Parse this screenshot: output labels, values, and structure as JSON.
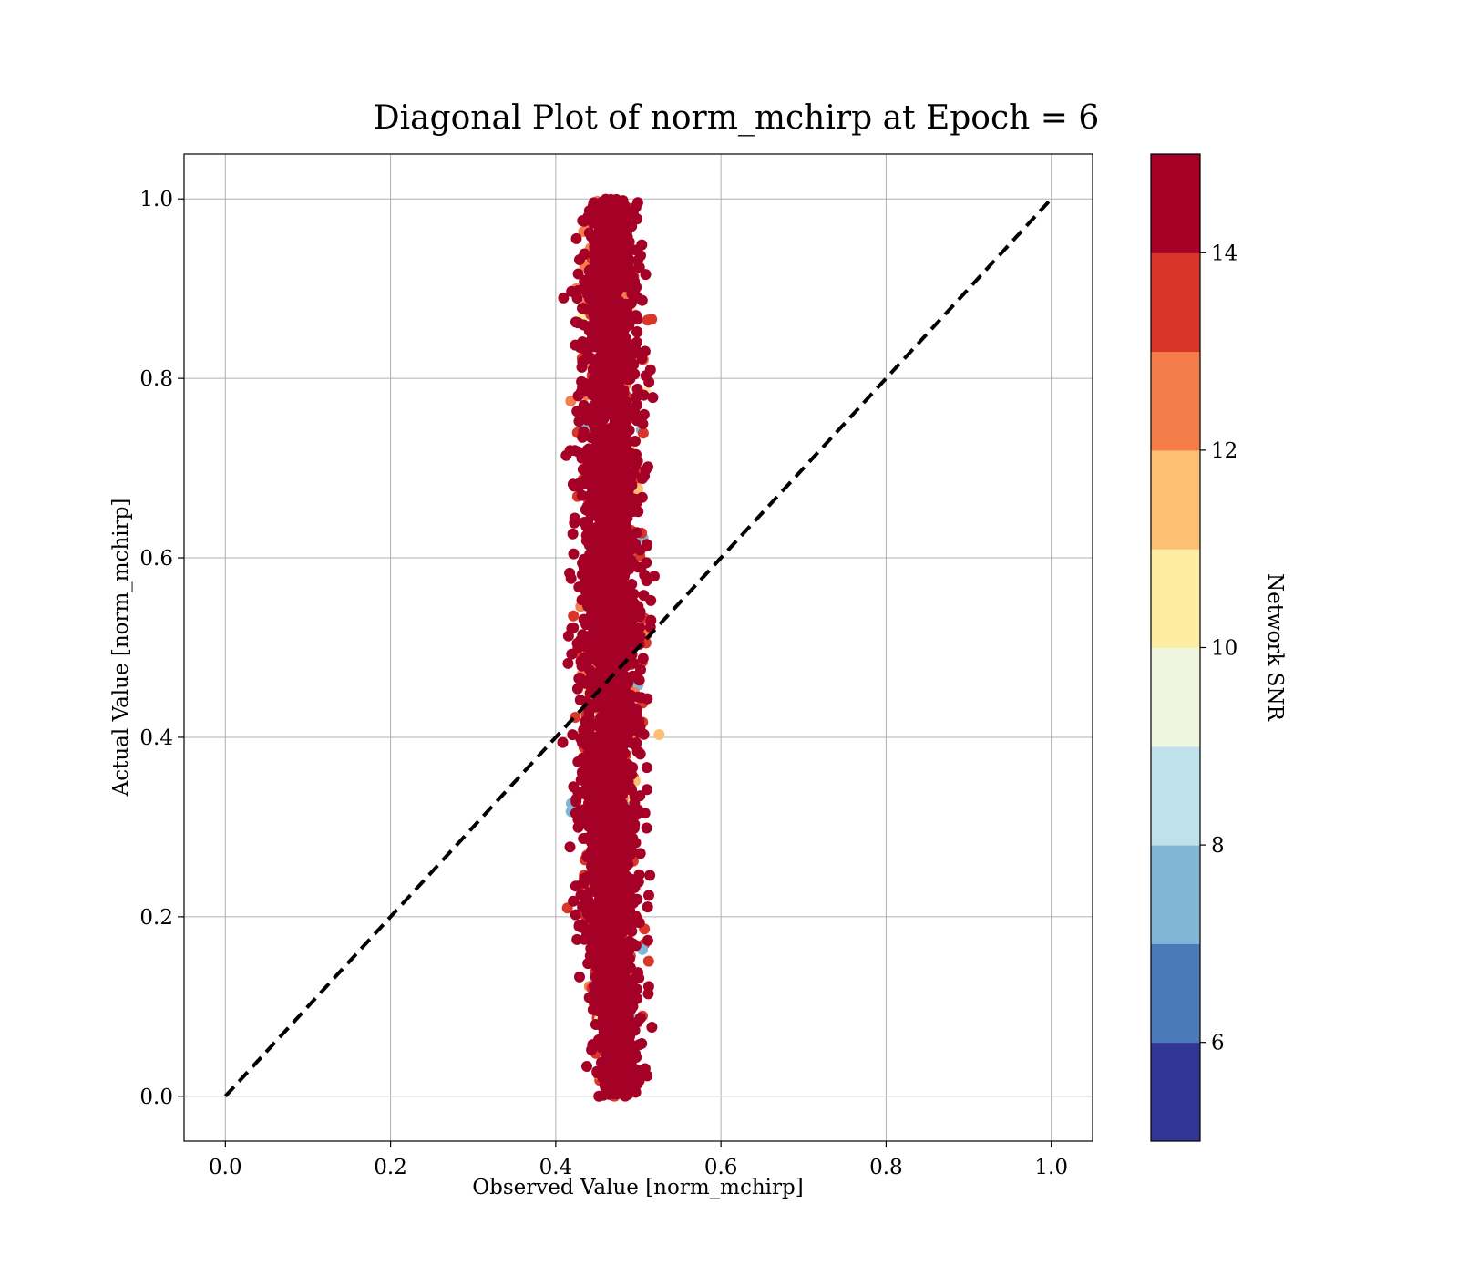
{
  "chart_data": {
    "type": "scatter",
    "title": "Diagonal Plot of norm_mchirp at Epoch = 6",
    "xlabel": "Observed Value [norm_mchirp]",
    "ylabel": "Actual Value [norm_mchirp]",
    "xlim": [
      -0.05,
      1.05
    ],
    "ylim": [
      -0.05,
      1.05
    ],
    "xticks": [
      "0.0",
      "0.2",
      "0.4",
      "0.6",
      "0.8",
      "1.0"
    ],
    "yticks": [
      "0.0",
      "0.2",
      "0.4",
      "0.6",
      "0.8",
      "1.0"
    ],
    "grid": true,
    "reference_line": {
      "x": [
        0,
        1
      ],
      "y": [
        0,
        1
      ],
      "style": "dashed",
      "color": "#000000"
    },
    "scatter_summary": {
      "x_center": 0.465,
      "x_spread": 0.018,
      "y_range": [
        0.0,
        1.0
      ],
      "dominant_color": "#a50026"
    },
    "colorbar": {
      "label": "Network SNR",
      "range": [
        5,
        15
      ],
      "ticks": [
        "6",
        "8",
        "10",
        "12",
        "14"
      ],
      "bands": [
        {
          "from": 5,
          "to": 6,
          "color": "#313695"
        },
        {
          "from": 6,
          "to": 7,
          "color": "#4a7ab7"
        },
        {
          "from": 7,
          "to": 8,
          "color": "#82b6d6"
        },
        {
          "from": 8,
          "to": 9,
          "color": "#bfe1eb"
        },
        {
          "from": 9,
          "to": 10,
          "color": "#eef6df"
        },
        {
          "from": 10,
          "to": 11,
          "color": "#fdeda2"
        },
        {
          "from": 11,
          "to": 12,
          "color": "#fdbf71"
        },
        {
          "from": 12,
          "to": 13,
          "color": "#f57d4a"
        },
        {
          "from": 13,
          "to": 14,
          "color": "#d93529"
        },
        {
          "from": 14,
          "to": 15,
          "color": "#a50026"
        }
      ]
    }
  }
}
